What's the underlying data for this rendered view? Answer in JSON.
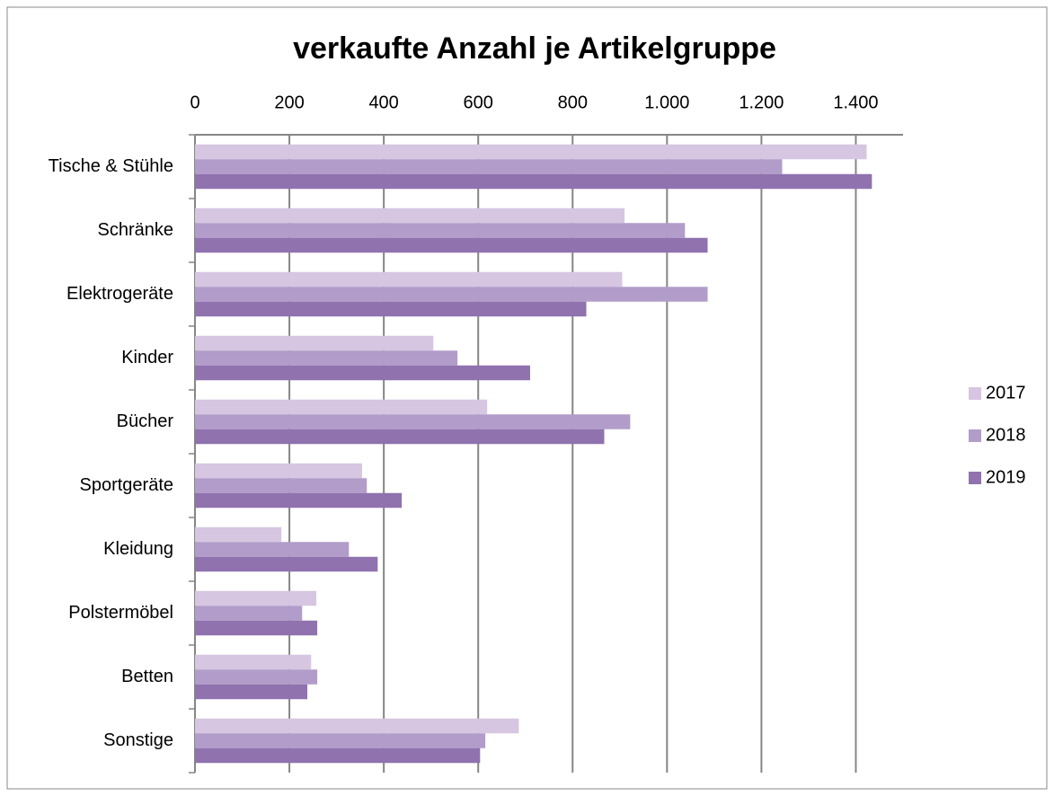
{
  "chart_data": {
    "type": "bar",
    "orientation": "horizontal",
    "title": "verkaufte Anzahl je Artikelgruppe",
    "categories": [
      "Tische & Stühle",
      "Schränke",
      "Elektrogeräte",
      "Kinder",
      "Bücher",
      "Sportgeräte",
      "Kleidung",
      "Polstermöbel",
      "Betten",
      "Sonstige"
    ],
    "series": [
      {
        "name": "2017",
        "color": "#d6c6e1",
        "values": [
          1423,
          910,
          905,
          505,
          619,
          354,
          183,
          257,
          246,
          686
        ]
      },
      {
        "name": "2018",
        "color": "#b29cc9",
        "values": [
          1244,
          1038,
          1086,
          556,
          922,
          364,
          326,
          227,
          259,
          615
        ]
      },
      {
        "name": "2019",
        "color": "#9072af",
        "values": [
          1434,
          1086,
          829,
          710,
          867,
          438,
          387,
          259,
          238,
          604
        ]
      }
    ],
    "xlim": [
      0,
      1500
    ],
    "xticks": [
      0,
      200,
      400,
      600,
      800,
      {
        "value": 1000,
        "label": "1.000"
      },
      {
        "value": 1200,
        "label": "1.200"
      },
      {
        "value": 1400,
        "label": "1.400"
      }
    ],
    "grid": true,
    "legend": "right"
  }
}
